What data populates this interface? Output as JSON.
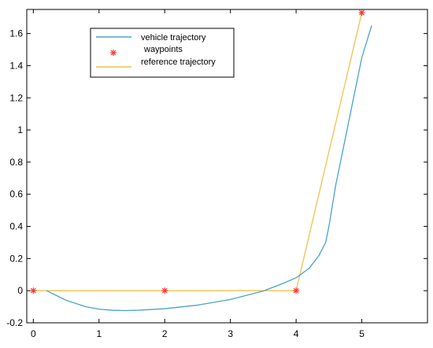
{
  "chart_data": {
    "type": "line",
    "title": "",
    "xlabel": "",
    "ylabel": "",
    "xlim": [
      -0.1,
      6.0
    ],
    "ylim": [
      -0.2,
      1.75
    ],
    "xticks": [
      0,
      1,
      2,
      3,
      4,
      5
    ],
    "xtick_labels": [
      "0",
      "1",
      "2",
      "3",
      "4",
      "5"
    ],
    "yticks": [
      -0.2,
      0,
      0.2,
      0.4,
      0.6,
      0.8,
      1.0,
      1.2,
      1.4,
      1.6
    ],
    "ytick_labels": [
      "-0.2",
      "0",
      "0.2",
      "0.4",
      "0.6",
      "0.8",
      "1",
      "1.2",
      "1.4",
      "1.6"
    ],
    "grid": false,
    "legend_position": "top-left",
    "series": [
      {
        "name": "vehicle trajectory",
        "type": "line",
        "color": "#4aa3c8",
        "x": [
          0.2,
          0.3,
          0.5,
          0.8,
          1.0,
          1.2,
          1.4,
          1.6,
          2.0,
          2.5,
          3.0,
          3.5,
          3.8,
          4.0,
          4.2,
          4.35,
          4.45,
          4.5,
          4.6,
          4.8,
          5.0,
          5.15
        ],
        "y": [
          0.0,
          -0.02,
          -0.06,
          -0.1,
          -0.115,
          -0.122,
          -0.124,
          -0.122,
          -0.112,
          -0.09,
          -0.055,
          -0.002,
          0.045,
          0.08,
          0.14,
          0.22,
          0.3,
          0.4,
          0.65,
          1.05,
          1.45,
          1.65
        ]
      },
      {
        "name": "waypoints",
        "type": "scatter",
        "marker": "asterisk",
        "color": "#ff3333",
        "x": [
          0,
          2,
          4,
          5
        ],
        "y": [
          0,
          0,
          0,
          1.73
        ]
      },
      {
        "name": "reference trajectory",
        "type": "line",
        "color": "#f2c14e",
        "x": [
          0,
          2,
          4,
          5
        ],
        "y": [
          0,
          0,
          0,
          1.73
        ]
      }
    ]
  }
}
